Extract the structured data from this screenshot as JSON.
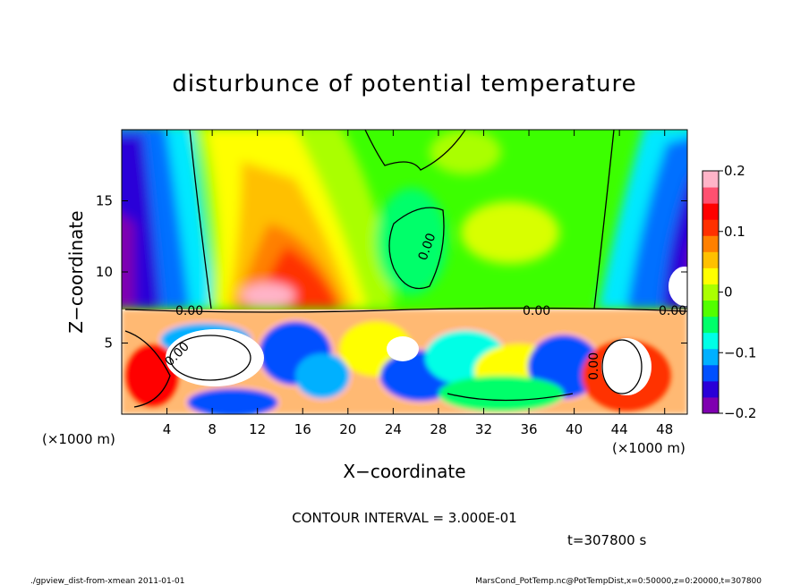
{
  "chart_data": {
    "type": "heatmap",
    "title": "disturbunce of potential temperature",
    "xlabel": "X−coordinate",
    "ylabel": "Z−coordinate",
    "x_unit_label": "(×1000 m)",
    "z_unit_label": "(×1000 m)",
    "xlim": [
      0,
      50
    ],
    "ylim": [
      0,
      20
    ],
    "x_ticks": [
      4,
      8,
      12,
      16,
      20,
      24,
      28,
      32,
      36,
      40,
      44,
      48
    ],
    "y_ticks": [
      5,
      10,
      15
    ],
    "colorbar": {
      "range": [
        -0.2,
        0.2
      ],
      "ticks": [
        {
          "value": 0.2,
          "label": "0.2"
        },
        {
          "value": 0.1,
          "label": "0.1"
        },
        {
          "value": 0,
          "label": "0"
        },
        {
          "value": -0.1,
          "label": "−0.1"
        },
        {
          "value": -0.2,
          "label": "−0.2"
        }
      ],
      "colors": [
        "#7f00b0",
        "#2a00d8",
        "#0050ff",
        "#00b0ff",
        "#00ffe6",
        "#00ff6a",
        "#52ff00",
        "#aaff00",
        "#ffff00",
        "#ffc000",
        "#ff8000",
        "#ff3000",
        "#ff0000",
        "#ff5070",
        "#ffb4c8"
      ]
    },
    "contour_labels": [
      "0.00",
      "0.00",
      "0.00",
      "0.00",
      "0.00",
      "0.00"
    ],
    "contour_interval_text": "CONTOUR INTERVAL = 3.000E-01",
    "time_text": "t=307800 s"
  },
  "footer": {
    "left": "./gpview_dist-from-xmean  2011-01-01",
    "right": "MarsCond_PotTemp.nc@PotTempDist,x=0:50000,z=0:20000,t=307800"
  }
}
